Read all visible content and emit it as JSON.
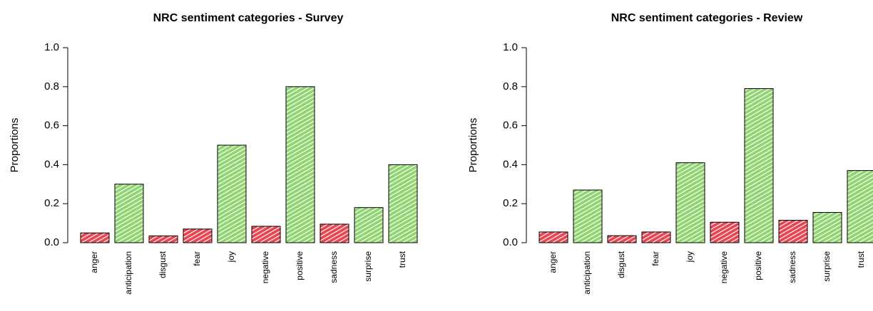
{
  "chart_data": [
    {
      "type": "bar",
      "title": "NRC sentiment categories - Survey",
      "y_label": "Proportions",
      "categories": [
        "anger",
        "anticipation",
        "disgust",
        "fear",
        "joy",
        "negative",
        "positive",
        "sadness",
        "surprise",
        "trust"
      ],
      "values": [
        0.05,
        0.3,
        0.035,
        0.07,
        0.5,
        0.084,
        0.8,
        0.095,
        0.18,
        0.4
      ],
      "colors": [
        "#e8434e",
        "#8fd46e",
        "#e8434e",
        "#e8434e",
        "#8fd46e",
        "#e8434e",
        "#8fd46e",
        "#e8434e",
        "#8fd46e",
        "#8fd46e"
      ],
      "ylim": [
        0,
        1
      ],
      "yticks": [
        {
          "value": 0,
          "label": "0.0"
        },
        0.2,
        0.4,
        0.6,
        0.8,
        {
          "value": 1,
          "label": "1.0"
        }
      ]
    },
    {
      "type": "bar",
      "title": "NRC sentiment categories - Review",
      "y_label": "Proportions",
      "categories": [
        "anger",
        "anticipation",
        "disgust",
        "fear",
        "joy",
        "negative",
        "positive",
        "sadness",
        "surprise",
        "trust"
      ],
      "values": [
        0.055,
        0.27,
        0.036,
        0.055,
        0.41,
        0.105,
        0.79,
        0.115,
        0.155,
        0.37
      ],
      "colors": [
        "#e8434e",
        "#8fd46e",
        "#e8434e",
        "#e8434e",
        "#8fd46e",
        "#e8434e",
        "#8fd46e",
        "#e8434e",
        "#8fd46e",
        "#8fd46e"
      ],
      "ylim": [
        0,
        1
      ],
      "yticks": [
        {
          "value": 0,
          "label": "0.0"
        },
        0.2,
        0.4,
        0.6,
        0.8,
        {
          "value": 1,
          "label": "1.0"
        }
      ]
    }
  ]
}
